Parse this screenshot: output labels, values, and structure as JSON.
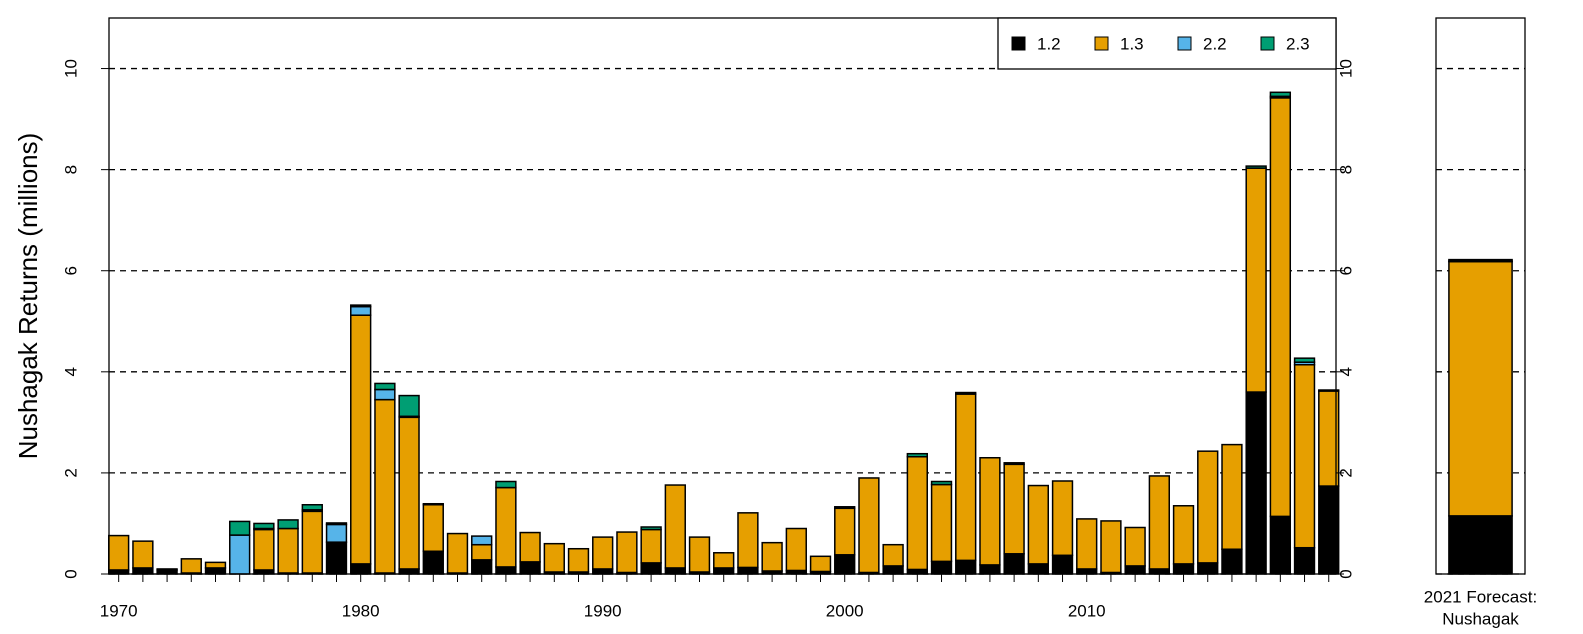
{
  "chart_data": [
    {
      "type": "stacked-bar",
      "ylabel": "Nushagak Returns (millions)",
      "x": [
        1970,
        1971,
        1972,
        1973,
        1974,
        1975,
        1976,
        1977,
        1978,
        1979,
        1980,
        1981,
        1982,
        1983,
        1984,
        1985,
        1986,
        1987,
        1988,
        1989,
        1990,
        1991,
        1992,
        1993,
        1994,
        1995,
        1996,
        1997,
        1998,
        1999,
        2000,
        2001,
        2002,
        2003,
        2004,
        2005,
        2006,
        2007,
        2008,
        2009,
        2010,
        2011,
        2012,
        2013,
        2014,
        2015,
        2016,
        2017,
        2018,
        2019,
        2020
      ],
      "xlim": [
        1969.6,
        2020.3
      ],
      "xticks": [
        1970,
        1980,
        1990,
        2000,
        2010
      ],
      "ylim": [
        0,
        11
      ],
      "yticks": [
        0,
        2,
        4,
        6,
        8,
        10
      ],
      "grid": true,
      "legend": "top-right",
      "series": [
        {
          "name": "1.2",
          "color": "#000000",
          "values": [
            0.08,
            0.12,
            0.08,
            0.02,
            0.12,
            0,
            0.08,
            0.02,
            0.02,
            0.63,
            0.2,
            0.02,
            0.1,
            0.45,
            0.02,
            0.28,
            0.14,
            0.24,
            0.04,
            0.04,
            0.1,
            0.03,
            0.22,
            0.12,
            0.04,
            0.12,
            0.13,
            0.06,
            0.07,
            0.05,
            0.38,
            0.03,
            0.16,
            0.09,
            0.25,
            0.27,
            0.18,
            0.4,
            0.2,
            0.37,
            0.1,
            0.03,
            0.16,
            0.1,
            0.2,
            0.22,
            0.49,
            3.6,
            1.14,
            0.52,
            1.74
          ]
        },
        {
          "name": "1.3",
          "color": "#E69F00",
          "values": [
            0.68,
            0.53,
            0.02,
            0.28,
            0.11,
            0,
            0.8,
            0.88,
            1.22,
            0,
            4.92,
            3.43,
            3.0,
            0.92,
            0.78,
            0.3,
            1.57,
            0.58,
            0.56,
            0.46,
            0.63,
            0.8,
            0.66,
            1.64,
            0.69,
            0.3,
            1.08,
            0.56,
            0.83,
            0.3,
            0.92,
            1.87,
            0.42,
            2.23,
            1.52,
            3.29,
            2.12,
            1.77,
            1.55,
            1.47,
            0.99,
            1.02,
            0.76,
            1.84,
            1.15,
            2.21,
            2.07,
            4.43,
            8.28,
            3.62,
            1.88
          ]
        },
        {
          "name": "2.2",
          "color": "#56B4E9",
          "values": [
            0,
            0,
            0,
            0,
            0,
            0.77,
            0.02,
            0,
            0.03,
            0.35,
            0.17,
            0.2,
            0.02,
            0,
            0,
            0.17,
            0,
            0,
            0,
            0,
            0,
            0,
            0,
            0,
            0,
            0,
            0,
            0,
            0,
            0,
            0,
            0,
            0,
            0,
            0,
            0,
            0,
            0,
            0,
            0,
            0,
            0,
            0,
            0,
            0,
            0,
            0,
            0,
            0.03,
            0.05,
            0
          ]
        },
        {
          "name": "2.3",
          "color": "#009E73",
          "values": [
            0,
            0,
            0,
            0,
            0,
            0.27,
            0.1,
            0.17,
            0.1,
            0.03,
            0.03,
            0.12,
            0.41,
            0.02,
            0,
            0,
            0.12,
            0,
            0,
            0,
            0,
            0,
            0.05,
            0,
            0,
            0,
            0,
            0,
            0,
            0,
            0.03,
            0,
            0,
            0.06,
            0.06,
            0.03,
            0,
            0.03,
            0,
            0,
            0,
            0,
            0,
            0,
            0,
            0,
            0,
            0.04,
            0.08,
            0.08,
            0.02
          ]
        }
      ]
    },
    {
      "type": "stacked-bar",
      "category_label": [
        "2021 Forecast:",
        "Nushagak"
      ],
      "ylim": [
        0,
        11
      ],
      "yticks": [
        0,
        2,
        4,
        6,
        8,
        10
      ],
      "grid": true,
      "series": [
        {
          "color": "#000000",
          "values": [
            1.15
          ]
        },
        {
          "color": "#E69F00",
          "values": [
            5.03
          ]
        },
        {
          "color": "#56B4E9",
          "values": [
            0.01
          ]
        },
        {
          "color": "#009E73",
          "values": [
            0.03
          ]
        }
      ]
    }
  ]
}
